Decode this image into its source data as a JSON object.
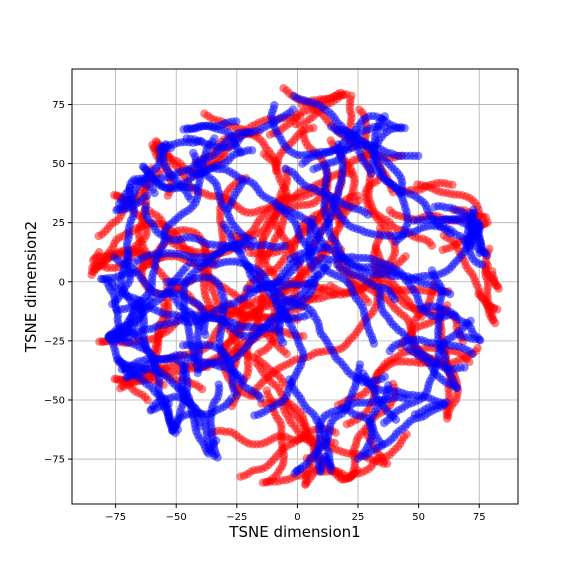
{
  "chart_data": {
    "type": "scatter",
    "title": "",
    "xlabel": "TSNE dimension1",
    "ylabel": "TSNE dimension2",
    "xlim": [
      -93,
      91
    ],
    "ylim": [
      -94,
      90
    ],
    "xticks": [
      -75,
      -50,
      -25,
      0,
      25,
      50,
      75
    ],
    "yticks": [
      -75,
      -50,
      -25,
      0,
      25,
      50,
      75
    ],
    "xtick_labels": [
      "−75",
      "−50",
      "−25",
      "0",
      "25",
      "50",
      "75"
    ],
    "ytick_labels": [
      "−75",
      "−50",
      "−25",
      "0",
      "25",
      "50",
      "75"
    ],
    "grid": true,
    "legend": "none",
    "point_alpha": 0.5,
    "series": [
      {
        "color": "#ff0000",
        "cloud_radius": 84,
        "cloud_center": [
          -1,
          -2
        ],
        "approx_points": 2600,
        "seed": 7
      },
      {
        "color": "#0000ff",
        "cloud_radius": 80,
        "cloud_center": [
          -1,
          -1
        ],
        "approx_points": 2600,
        "seed": 11
      }
    ]
  }
}
